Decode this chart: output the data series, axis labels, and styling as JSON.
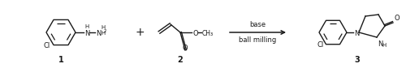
{
  "bg_color": "#ffffff",
  "fig_width": 5.0,
  "fig_height": 0.84,
  "dpi": 100,
  "label1": "1",
  "label2": "2",
  "label3": "3",
  "arrow_text_top": "base",
  "arrow_text_bottom": "ball milling",
  "plus_sign": "+",
  "text_color": "#1a1a1a",
  "line_color": "#1a1a1a",
  "font_size_labels": 7,
  "font_size_arrow": 6,
  "font_size_chem": 6
}
